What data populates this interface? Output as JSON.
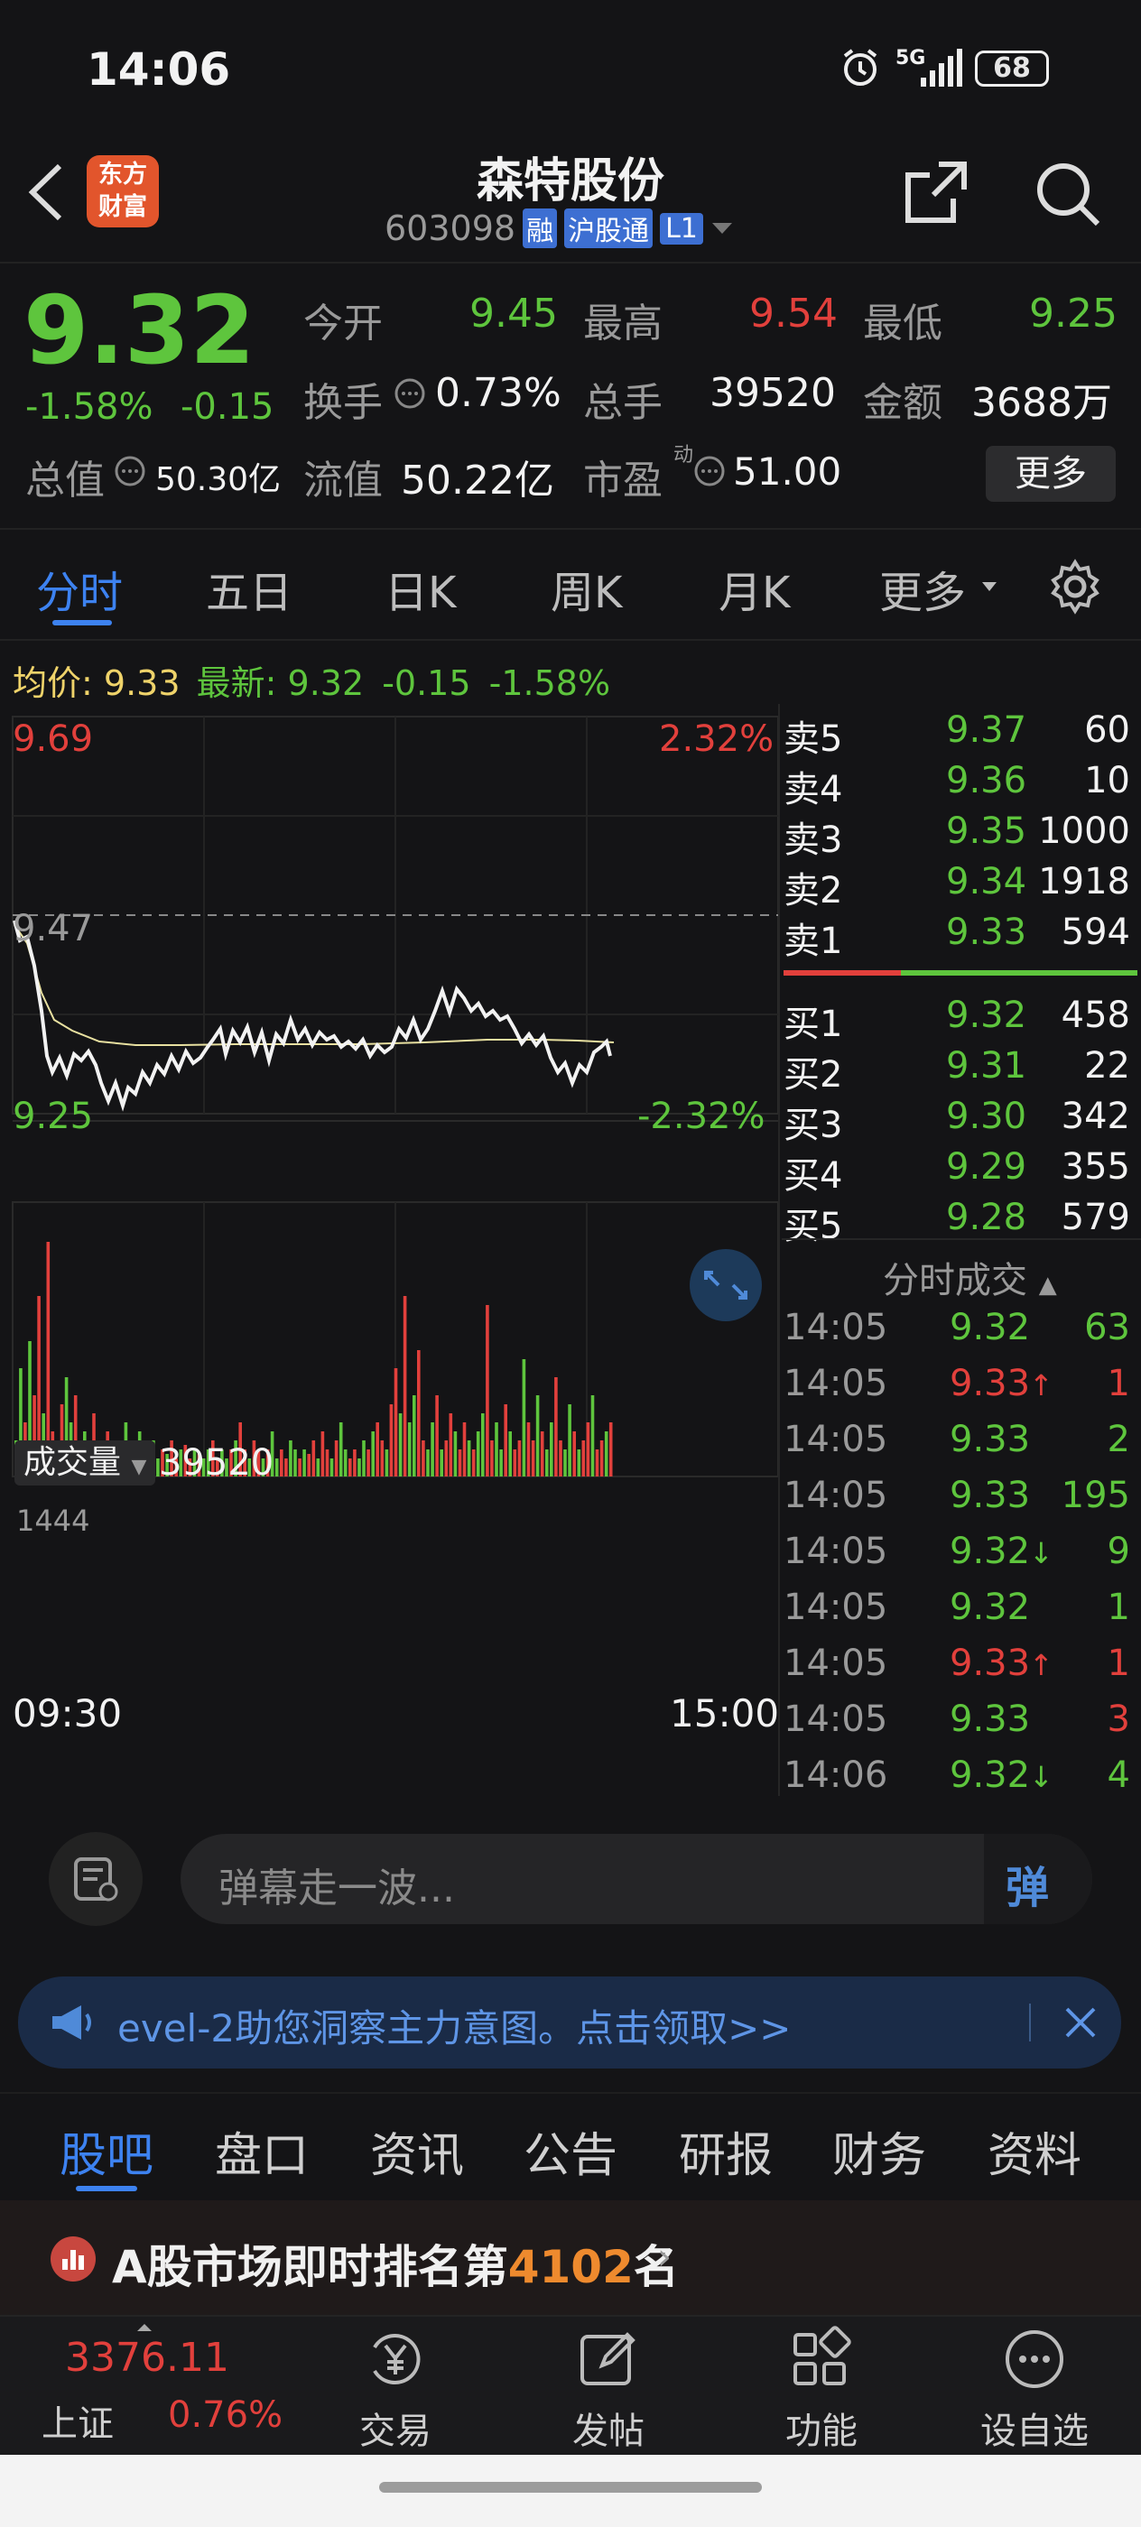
{
  "status": {
    "time": "14:06",
    "network": "5G",
    "battery": "68"
  },
  "header": {
    "back_label": "<",
    "logo_text_1": "东方",
    "logo_text_2": "财富",
    "title": "森特股份",
    "code": "603098",
    "badges": [
      "融",
      "沪股通",
      "L1"
    ]
  },
  "quote": {
    "price": "9.32",
    "change_pct": "-1.58%",
    "change": "-0.15",
    "open_label": "今开",
    "open": "9.45",
    "high_label": "最高",
    "high": "9.54",
    "low_label": "最低",
    "low": "9.25",
    "turnover_label": "换手",
    "turnover": "0.73%",
    "volume_label": "总手",
    "volume": "39520",
    "amount_label": "金额",
    "amount": "3688万",
    "mktcap_label": "总值",
    "mktcap": "50.30亿",
    "float_label": "流值",
    "float_cap": "50.22亿",
    "pe_label": "市盈",
    "pe_sup": "动",
    "pe": "51.00",
    "more_button": "更多"
  },
  "tabs": [
    "分时",
    "五日",
    "日K",
    "周K",
    "月K",
    "更多"
  ],
  "avg_line": {
    "avg_label": "均价:",
    "avg": "9.33",
    "latest_label": "最新:",
    "latest": "9.32",
    "chg": "-0.15",
    "pct": "-1.58%"
  },
  "chart": {
    "max_price": "9.69",
    "max_pct": "2.32%",
    "ref_price": "9.47",
    "min_price": "9.25",
    "min_pct": "-2.32%",
    "time_start": "09:30",
    "time_end": "15:00",
    "volume_label": "成交量",
    "volume_total": "39520",
    "volume_max": "1444"
  },
  "orderbook": {
    "asks": [
      {
        "label": "卖5",
        "price": "9.37",
        "qty": "60"
      },
      {
        "label": "卖4",
        "price": "9.36",
        "qty": "10"
      },
      {
        "label": "卖3",
        "price": "9.35",
        "qty": "1000"
      },
      {
        "label": "卖2",
        "price": "9.34",
        "qty": "1918"
      },
      {
        "label": "卖1",
        "price": "9.33",
        "qty": "594"
      }
    ],
    "bids": [
      {
        "label": "买1",
        "price": "9.32",
        "qty": "458"
      },
      {
        "label": "买2",
        "price": "9.31",
        "qty": "22"
      },
      {
        "label": "买3",
        "price": "9.30",
        "qty": "342"
      },
      {
        "label": "买4",
        "price": "9.29",
        "qty": "355"
      },
      {
        "label": "买5",
        "price": "9.28",
        "qty": "579"
      }
    ]
  },
  "trades_title": "分时成交",
  "trades": [
    {
      "time": "14:05",
      "price": "9.32",
      "arrow": "",
      "qty": "63",
      "qty_color": "green"
    },
    {
      "time": "14:05",
      "price": "9.33",
      "arrow": "↑",
      "qty": "1",
      "qty_color": "red"
    },
    {
      "time": "14:05",
      "price": "9.33",
      "arrow": "",
      "qty": "2",
      "qty_color": "green"
    },
    {
      "time": "14:05",
      "price": "9.33",
      "arrow": "",
      "qty": "195",
      "qty_color": "green"
    },
    {
      "time": "14:05",
      "price": "9.32",
      "arrow": "↓",
      "qty": "9",
      "qty_color": "green"
    },
    {
      "time": "14:05",
      "price": "9.32",
      "arrow": "",
      "qty": "1",
      "qty_color": "green"
    },
    {
      "time": "14:05",
      "price": "9.33",
      "arrow": "↑",
      "qty": "1",
      "qty_color": "red"
    },
    {
      "time": "14:05",
      "price": "9.33",
      "arrow": "",
      "qty": "3",
      "qty_color": "red"
    },
    {
      "time": "14:06",
      "price": "9.32",
      "arrow": "↓",
      "qty": "4",
      "qty_color": "green"
    }
  ],
  "comment": {
    "placeholder": "弹幕走一波...",
    "danmu_label": "弹"
  },
  "banner": {
    "text": "evel-2助您洞察主力意图。点击领取>>"
  },
  "bottom_tabs": [
    "股吧",
    "盘口",
    "资讯",
    "公告",
    "研报",
    "财务",
    "资料"
  ],
  "rank": {
    "prefix": "A股市场即时排名第",
    "rank": "4102",
    "suffix": "名"
  },
  "toolbar": {
    "index_value": "3376.11",
    "index_name": "上证",
    "index_pct": "0.76%",
    "items": [
      "交易",
      "发帖",
      "功能",
      "设自选"
    ]
  },
  "colors": {
    "up": "#e2403c",
    "down": "#5ec53d",
    "accent": "#3d82f0",
    "avg": "#efd36a"
  }
}
